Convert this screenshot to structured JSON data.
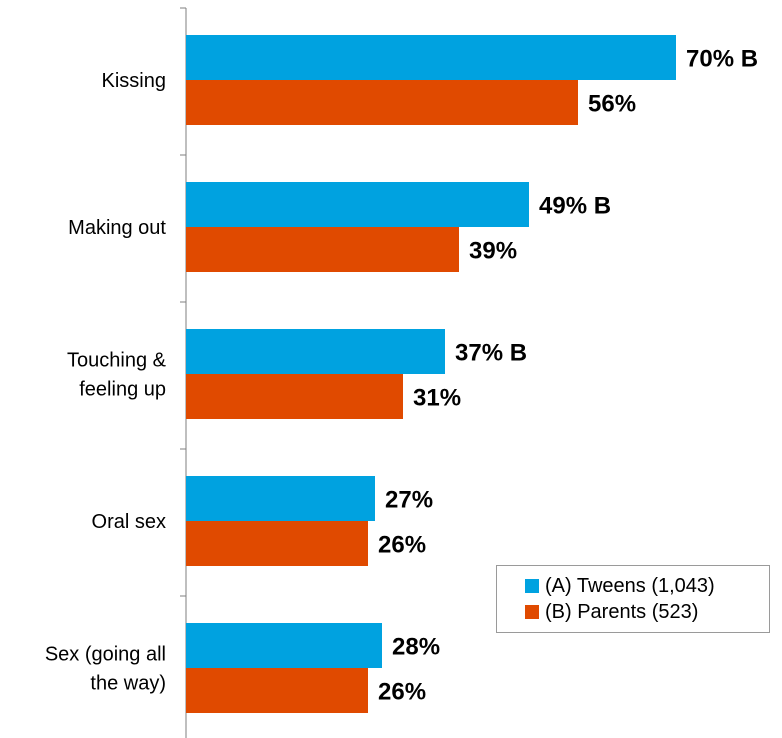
{
  "chart_data": {
    "type": "bar",
    "orientation": "horizontal",
    "categories": [
      [
        "Kissing"
      ],
      [
        "Making out"
      ],
      [
        "Touching &",
        "feeling up"
      ],
      [
        "Oral sex"
      ],
      [
        "Sex (going all",
        "the way)"
      ]
    ],
    "series": [
      {
        "name": "(A) Tweens (1,043)",
        "color": "#00a2e0",
        "values": [
          70,
          49,
          37,
          27,
          28
        ],
        "labels": [
          "70% B",
          "49% B",
          "37% B",
          "27%",
          "28%"
        ]
      },
      {
        "name": "(B) Parents (523)",
        "color": "#e04a00",
        "values": [
          56,
          39,
          31,
          26,
          26
        ],
        "labels": [
          "56%",
          "39%",
          "31%",
          "26%",
          "26%"
        ]
      }
    ],
    "xlim": [
      0,
      100
    ],
    "grid": false,
    "legend_position": "bottom-right"
  }
}
